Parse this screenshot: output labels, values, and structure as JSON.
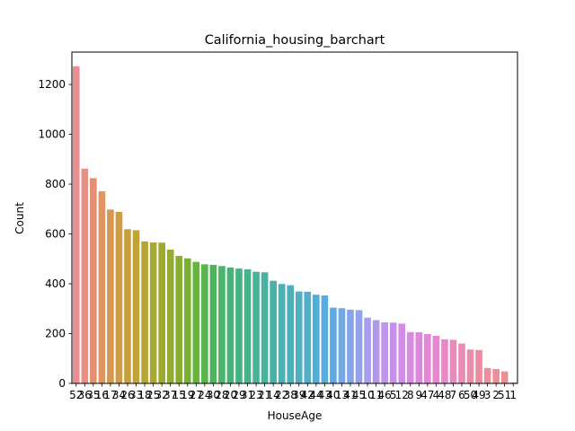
{
  "chart_data": {
    "type": "bar",
    "title": "California_housing_barchart",
    "xlabel": "HouseAge",
    "ylabel": "Count",
    "ylim": [
      0,
      1330
    ],
    "yticks": [
      0,
      200,
      400,
      600,
      800,
      1000,
      1200
    ],
    "grid": false,
    "categories": [
      "52",
      "36",
      "35",
      "16",
      "17",
      "34",
      "26",
      "33",
      "18",
      "25",
      "32",
      "37",
      "15",
      "19",
      "27",
      "24",
      "30",
      "28",
      "20",
      "29",
      "31",
      "23",
      "21",
      "14",
      "22",
      "38",
      "39",
      "42",
      "44",
      "43",
      "40",
      "13",
      "41",
      "45",
      "10",
      "11",
      "46",
      "5",
      "12",
      "8",
      "9",
      "47",
      "4",
      "48",
      "7",
      "6",
      "50",
      "49",
      "3",
      "2",
      "51",
      "1"
    ],
    "values": [
      1273,
      862,
      824,
      771,
      698,
      689,
      619,
      615,
      570,
      566,
      565,
      537,
      512,
      502,
      488,
      478,
      476,
      471,
      465,
      461,
      458,
      448,
      446,
      412,
      399,
      394,
      369,
      368,
      356,
      353,
      304,
      302,
      296,
      294,
      264,
      254,
      245,
      244,
      240,
      206,
      205,
      198,
      191,
      177,
      175,
      160,
      136,
      134,
      62,
      58,
      48,
      4
    ],
    "colors": [
      "#ea8e96",
      "#e98e83",
      "#e48f72",
      "#e19561",
      "#d59a50",
      "#cf9b43",
      "#c9a03b",
      "#c0a436",
      "#b5a632",
      "#a9a832",
      "#9ea930",
      "#93ab30",
      "#87ae30",
      "#78b131",
      "#67b43a",
      "#58b54b",
      "#4fb55d",
      "#4bb46b",
      "#48b377",
      "#48b382",
      "#47b38b",
      "#48b395",
      "#49b29e",
      "#4bb1a7",
      "#4db1b0",
      "#4eb0b9",
      "#50afc1",
      "#52aec9",
      "#55add3",
      "#59acdb",
      "#5eaae4",
      "#73a8e7",
      "#86a4ea",
      "#97a0ea",
      "#a69def",
      "#b298ed",
      "#be94ed",
      "#c990eb",
      "#d18ce7",
      "#d889e4",
      "#df86de",
      "#e286d6",
      "#e487ce",
      "#e789c5",
      "#e98bbc",
      "#ea8cb3",
      "#ea8daa",
      "#ea8da3",
      "#ea8e9d",
      "#ea8e97",
      "#ea8f92",
      "#ea8f8f"
    ]
  }
}
